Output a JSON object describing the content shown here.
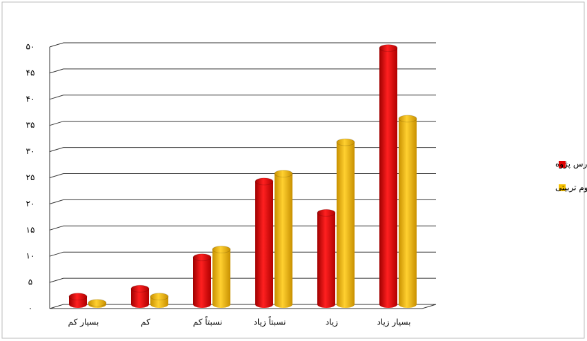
{
  "chart_data": {
    "type": "bar3d",
    "categories": [
      "بسیار کم",
      "کم",
      "نسبتاً کم",
      "نسبتاً زیاد",
      "زیاد",
      "بسیار زیاد"
    ],
    "series": [
      {
        "name": "معلمان درس پژوه",
        "color": "#e00000",
        "values": [
          1.5,
          3,
          9,
          23.5,
          17.5,
          49
        ]
      },
      {
        "name": "متخصصان علوم تربیتی",
        "color": "#f5c000",
        "values": [
          0.3,
          1.5,
          10.5,
          25,
          31,
          35.5
        ]
      }
    ],
    "ylim": [
      0,
      50
    ],
    "yticks": [
      {
        "value": 0,
        "label": "۰"
      },
      {
        "value": 5,
        "label": "۵"
      },
      {
        "value": 10,
        "label": "۱۰"
      },
      {
        "value": 15,
        "label": "۱۵"
      },
      {
        "value": 20,
        "label": "۲۰"
      },
      {
        "value": 25,
        "label": "۲۵"
      },
      {
        "value": 30,
        "label": "۳۰"
      },
      {
        "value": 35,
        "label": "۳۵"
      },
      {
        "value": 40,
        "label": "۴۰"
      },
      {
        "value": 45,
        "label": "۴۵"
      },
      {
        "value": 50,
        "label": "۵۰"
      }
    ],
    "grid": true,
    "legend": "right"
  }
}
